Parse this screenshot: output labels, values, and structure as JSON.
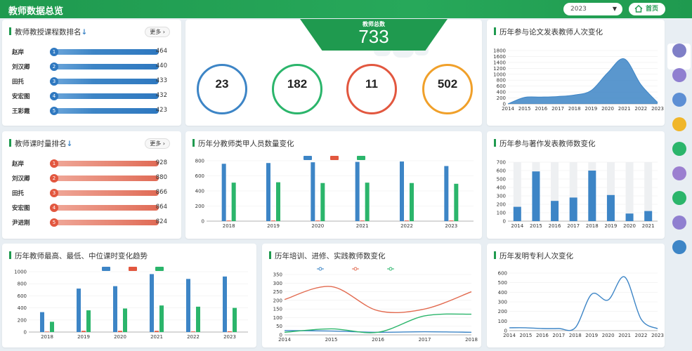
{
  "header": {
    "title": "教师数据总览",
    "year_value": "2023",
    "home_label": "首页"
  },
  "sidebar": {
    "items": [
      {
        "label": "",
        "color": "#7f7fc7",
        "active": true
      },
      {
        "label": "",
        "color": "#8f7fd0"
      },
      {
        "label": "",
        "color": "#5d8fd4"
      },
      {
        "label": "",
        "color": "#f0b62a"
      },
      {
        "label": "",
        "color": "#2bb56b"
      },
      {
        "label": "",
        "color": "#9b7fd0"
      },
      {
        "label": "",
        "color": "#2bb56b"
      },
      {
        "label": "",
        "color": "#8f7fd0"
      },
      {
        "label": "",
        "color": "#3d85c6"
      }
    ]
  },
  "course_rank": {
    "title": "教师教授课程数排名",
    "more": "更多",
    "rows": [
      {
        "name": "赵岸",
        "rank": "1",
        "value": "464"
      },
      {
        "name": "刘汉卿",
        "rank": "2",
        "value": "440"
      },
      {
        "name": "田托",
        "rank": "3",
        "value": "433"
      },
      {
        "name": "安宏图",
        "rank": "4",
        "value": "432"
      },
      {
        "name": "王彩霞",
        "rank": "5",
        "value": "423"
      }
    ]
  },
  "hours_rank": {
    "title": "教师课时量排名",
    "more": "更多",
    "rows": [
      {
        "name": "赵岸",
        "rank": "1",
        "value": "928"
      },
      {
        "name": "刘汉卿",
        "rank": "2",
        "value": "880"
      },
      {
        "name": "田托",
        "rank": "3",
        "value": "866"
      },
      {
        "name": "安宏图",
        "rank": "4",
        "value": "864"
      },
      {
        "name": "尹进刚",
        "rank": "5",
        "value": "824"
      }
    ]
  },
  "totals": {
    "label": "教师总数",
    "value": "733",
    "stats": [
      {
        "value": "23",
        "label": "",
        "color": "#3d85c6"
      },
      {
        "value": "182",
        "label": "",
        "color": "#2bb56b"
      },
      {
        "value": "11",
        "label": "",
        "color": "#e2573f"
      },
      {
        "value": "502",
        "label": "",
        "color": "#f0a02a"
      }
    ]
  },
  "chart_data": [
    {
      "id": "paper_trend",
      "type": "area",
      "title": "历年参与论文发表教师人次变化",
      "x": [
        2014,
        2015,
        2016,
        2017,
        2018,
        2019,
        2020,
        2021,
        2022,
        2023
      ],
      "values": [
        0,
        220,
        230,
        250,
        300,
        450,
        1050,
        1520,
        650,
        50
      ],
      "y_ticks": [
        0,
        200,
        400,
        600,
        800,
        1000,
        1200,
        1400,
        1600,
        1800
      ],
      "ylim": [
        0,
        1800
      ],
      "color": "#3d85c6"
    },
    {
      "id": "title_by_type",
      "type": "bar",
      "title": "历年分教师类甲人员数量变化",
      "categories": [
        2018,
        2019,
        2020,
        2021,
        2022,
        2023
      ],
      "series": [
        {
          "name": "",
          "color": "#3d85c6",
          "values": [
            760,
            770,
            780,
            785,
            790,
            730
          ]
        },
        {
          "name": "",
          "color": "#e2573f",
          "values": [
            8,
            8,
            8,
            8,
            8,
            8
          ]
        },
        {
          "name": "",
          "color": "#2bb56b",
          "values": [
            510,
            515,
            505,
            510,
            505,
            495
          ]
        }
      ],
      "y_ticks": [
        0,
        200,
        400,
        600,
        800
      ],
      "ylim": [
        0,
        800
      ]
    },
    {
      "id": "works_trend",
      "type": "bar",
      "title": "历年参与著作发表教师数变化",
      "categories": [
        2014,
        2015,
        2016,
        2017,
        2018,
        2019,
        2020,
        2021
      ],
      "values": [
        170,
        590,
        240,
        280,
        600,
        310,
        90,
        120
      ],
      "y_ticks": [
        0,
        100,
        200,
        300,
        400,
        500,
        600,
        700
      ],
      "ylim": [
        0,
        700
      ],
      "color": "#3d85c6"
    },
    {
      "id": "hours_extremes",
      "type": "bar",
      "title": "历年教师最高、最低、中位课时变化趋势",
      "categories": [
        2018,
        2019,
        2020,
        2021,
        2022,
        2023
      ],
      "series": [
        {
          "name": "",
          "color": "#3d85c6",
          "values": [
            330,
            720,
            760,
            960,
            880,
            920
          ]
        },
        {
          "name": "",
          "color": "#e2573f",
          "values": [
            8,
            20,
            20,
            20,
            10,
            12
          ]
        },
        {
          "name": "",
          "color": "#2bb56b",
          "values": [
            170,
            360,
            390,
            440,
            420,
            400
          ]
        }
      ],
      "y_ticks": [
        0,
        200,
        400,
        600,
        800,
        1000
      ],
      "ylim": [
        0,
        1000
      ]
    },
    {
      "id": "training_trend",
      "type": "line",
      "title": "历年培训、进修、实践教师数变化",
      "x": [
        2014,
        2015,
        2016,
        2017,
        2018
      ],
      "series": [
        {
          "name": "",
          "color": "#3d85c6",
          "values": [
            25,
            22,
            15,
            18,
            15
          ]
        },
        {
          "name": "",
          "color": "#e26a4f",
          "values": [
            205,
            280,
            140,
            150,
            250
          ]
        },
        {
          "name": "",
          "color": "#2bb56b",
          "values": [
            15,
            35,
            15,
            110,
            120
          ]
        }
      ],
      "y_ticks": [
        0,
        50,
        100,
        150,
        200,
        250,
        300,
        350
      ],
      "ylim": [
        0,
        350
      ]
    },
    {
      "id": "patent_trend",
      "type": "line",
      "title": "历年发明专利人次变化",
      "x": [
        2014,
        2015,
        2016,
        2017,
        2018,
        2019,
        2020,
        2021,
        2022,
        2023
      ],
      "values": [
        30,
        30,
        22,
        22,
        30,
        380,
        320,
        560,
        120,
        20
      ],
      "y_ticks": [
        0,
        100,
        200,
        300,
        400,
        500,
        600
      ],
      "ylim": [
        0,
        600
      ],
      "color": "#3d85c6"
    }
  ]
}
